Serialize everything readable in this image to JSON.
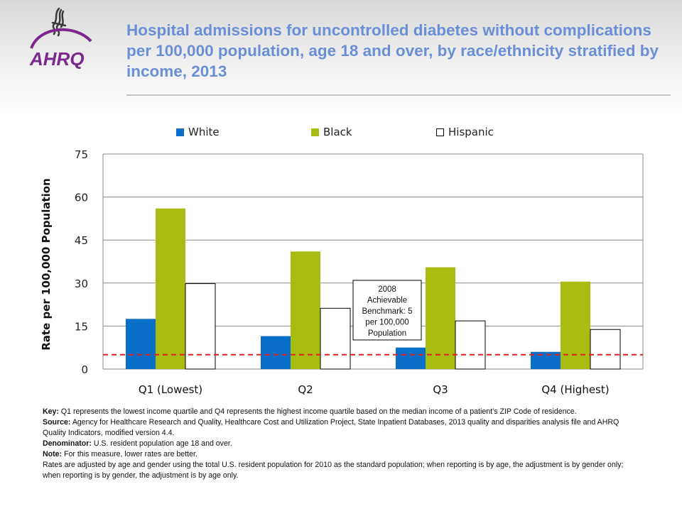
{
  "header": {
    "title": "Hospital admissions for uncontrolled diabetes without complications per 100,000 population, age 18 and over, by race/ethnicity stratified by income, 2013",
    "logo_text": "AHRQ"
  },
  "chart_data": {
    "type": "bar",
    "categories": [
      "Q1 (Lowest)",
      "Q2",
      "Q3",
      "Q4 (Highest)"
    ],
    "series": [
      {
        "name": "White",
        "values": [
          17.5,
          11.5,
          7.5,
          6.0
        ],
        "color": "#0a6fc8"
      },
      {
        "name": "Black",
        "values": [
          56.0,
          41.0,
          35.5,
          30.5
        ],
        "color": "#a8bc12"
      },
      {
        "name": "Hispanic",
        "values": [
          29.8,
          21.2,
          16.8,
          13.8
        ],
        "color": "#ffffff"
      }
    ],
    "ylabel": "Rate per 100,000 Population",
    "xlabel": "",
    "ylim": [
      0,
      75
    ],
    "yticks": [
      "0",
      "15",
      "30",
      "45",
      "60",
      "75"
    ],
    "ytick_values": [
      0,
      15,
      30,
      45,
      60,
      75
    ],
    "grid": true,
    "legend_position": "top",
    "benchmark": {
      "value": 5,
      "color": "#e02020",
      "label": "2008 Achievable Benchmark: 5 per 100,000 Population"
    }
  },
  "notes": {
    "key_label": "Key:",
    "key_text": "Q1 represents the lowest income quartile and Q4 represents the highest income quartile based on the median income of a patient’s ZIP Code of residence.",
    "source_label": "Source:",
    "source_text": "Agency for Healthcare Research and Quality, Healthcare Cost and Utilization Project, State Inpatient Databases, 2013 quality and disparities analysis file and AHRQ Quality Indicators, modified version 4.4.",
    "denominator_label": "Denominator:",
    "denominator_text": "U.S. resident population age 18 and over.",
    "note_label": "Note:",
    "note_text": "For this measure, lower rates are better.",
    "rates_text": "Rates are adjusted by age and gender using the total U.S. resident population for 2010 as the standard population; when reporting is by age, the adjustment is by gender only; when reporting is by gender, the adjustment is by age only."
  }
}
